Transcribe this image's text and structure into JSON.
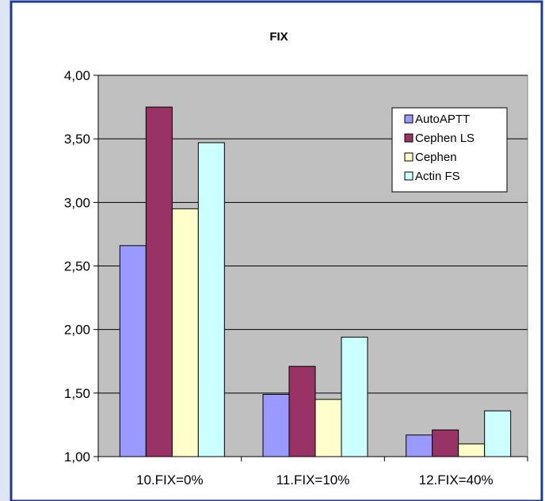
{
  "chart_data": {
    "type": "bar",
    "title": "FIX",
    "xlabel": "",
    "ylabel": "",
    "categories": [
      "10.FIX=0%",
      "11.FIX=10%",
      "12.FIX=40%"
    ],
    "ylim": [
      1.0,
      4.0
    ],
    "yticks": [
      "1,00",
      "1,50",
      "2,00",
      "2,50",
      "3,00",
      "3,50",
      "4,00"
    ],
    "ytick_values": [
      1.0,
      1.5,
      2.0,
      2.5,
      3.0,
      3.5,
      4.0
    ],
    "grid": true,
    "legend_position": "top-right",
    "series": [
      {
        "name": "AutoAPTT",
        "color": "#9999ff",
        "values": [
          2.66,
          1.49,
          1.17
        ]
      },
      {
        "name": "Cephen LS",
        "color": "#993366",
        "values": [
          3.75,
          1.71,
          1.21
        ]
      },
      {
        "name": "Cephen",
        "color": "#ffffcc",
        "values": [
          2.95,
          1.45,
          1.1
        ]
      },
      {
        "name": "Actin FS",
        "color": "#ccffff",
        "values": [
          3.47,
          1.94,
          1.36
        ]
      }
    ],
    "colors": {
      "frame_border": "#1f3a93",
      "side_panel": "#dce6f7",
      "plot_background": "#c0c0c0",
      "gridline": "#000000"
    }
  }
}
